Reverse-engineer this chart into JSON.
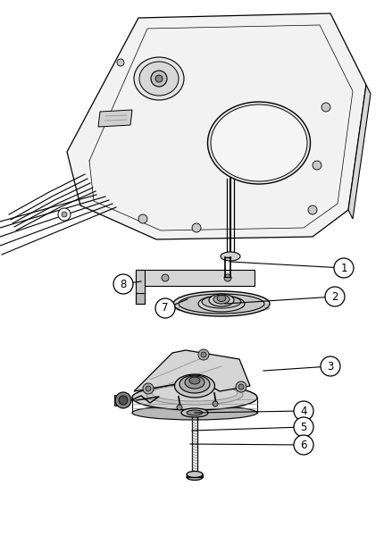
{
  "background_color": "#ffffff",
  "line_color": "#000000",
  "fig_width": 4.3,
  "fig_height": 6.0,
  "dpi": 100,
  "callouts": [
    [
      385,
      300,
      258,
      293,
      1
    ],
    [
      375,
      332,
      252,
      340,
      2
    ],
    [
      370,
      410,
      295,
      415,
      3
    ],
    [
      340,
      460,
      218,
      462,
      4
    ],
    [
      340,
      478,
      215,
      482,
      5
    ],
    [
      340,
      498,
      213,
      497,
      6
    ],
    [
      185,
      345,
      210,
      335,
      7
    ],
    [
      138,
      318,
      158,
      315,
      8
    ]
  ]
}
